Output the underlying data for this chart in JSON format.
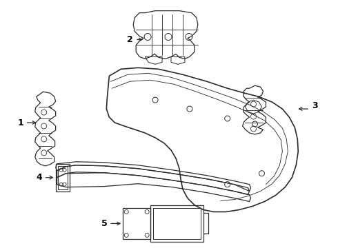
{
  "bg_color": "#ffffff",
  "line_color": "#2a2a2a",
  "lw": 0.9,
  "fig_width": 4.9,
  "fig_height": 3.6,
  "dpi": 100
}
